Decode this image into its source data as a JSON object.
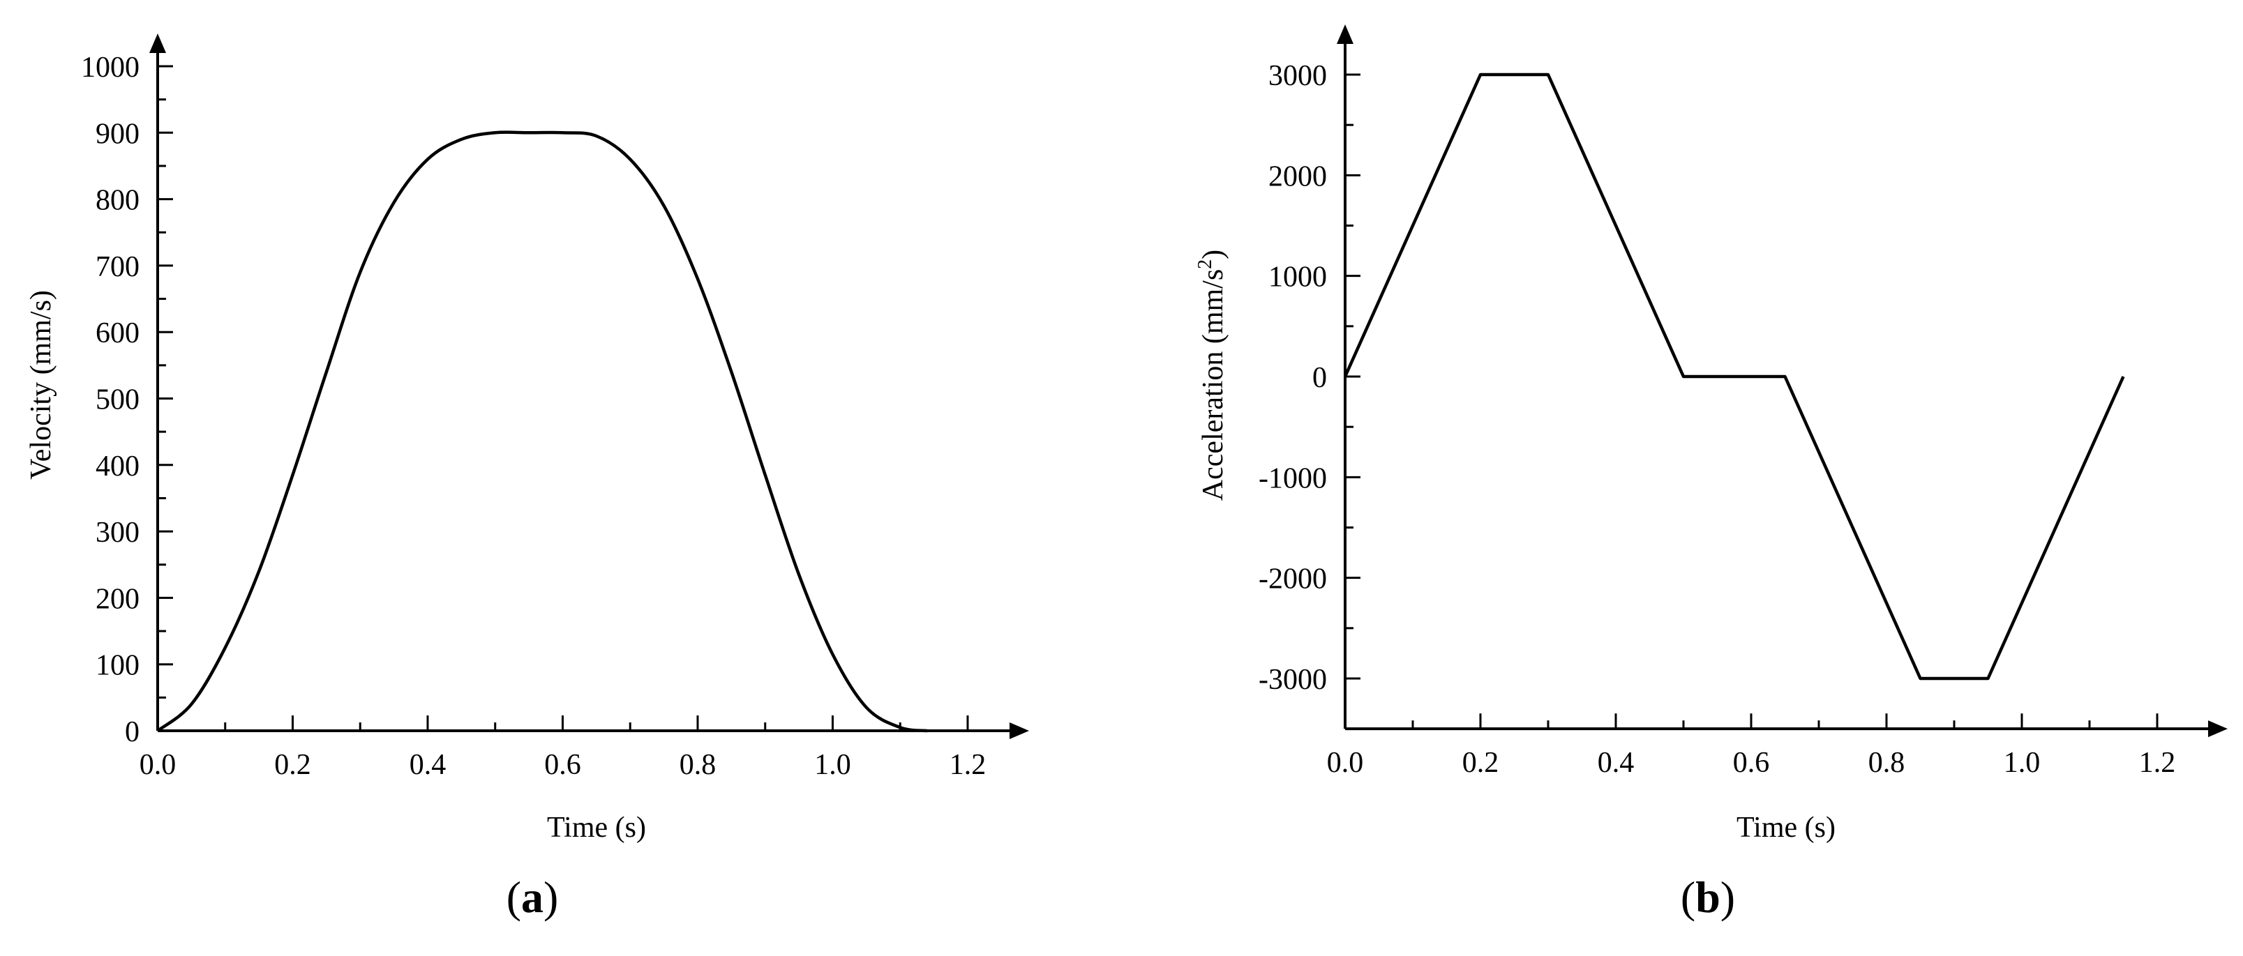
{
  "chart_data": [
    {
      "id": "a",
      "type": "line",
      "panel_label": "a",
      "xlabel": "Time (s)",
      "ylabel": "Velocity (mm/s)",
      "xlim": [
        0,
        1.3
      ],
      "ylim": [
        0,
        1050
      ],
      "x_ticks": [
        0.0,
        0.2,
        0.4,
        0.6,
        0.8,
        1.0,
        1.2
      ],
      "x_tick_labels": [
        "0.0",
        "0.2",
        "0.4",
        "0.6",
        "0.8",
        "1.0",
        "1.2"
      ],
      "y_ticks": [
        0,
        100,
        200,
        300,
        400,
        500,
        600,
        700,
        800,
        900,
        1000
      ],
      "y_tick_labels": [
        "0",
        "100",
        "200",
        "300",
        "400",
        "500",
        "600",
        "700",
        "800",
        "900",
        "1000"
      ],
      "grid": false,
      "series": [
        {
          "x": [
            0,
            0.05,
            0.1,
            0.15,
            0.2,
            0.25,
            0.3,
            0.35,
            0.4,
            0.45,
            0.5,
            0.55,
            0.6,
            0.65,
            0.7,
            0.75,
            0.8,
            0.85,
            0.9,
            0.95,
            1.0,
            1.05,
            1.1,
            1.14
          ],
          "y": [
            0,
            40,
            125,
            240,
            385,
            540,
            690,
            795,
            860,
            890,
            900,
            900,
            900,
            895,
            860,
            790,
            680,
            540,
            385,
            235,
            115,
            35,
            5,
            0
          ]
        }
      ]
    },
    {
      "id": "b",
      "type": "line",
      "panel_label": "b",
      "xlabel": "Time (s)",
      "ylabel": "Acceleration (mm/s",
      "ylabel_sup": "2",
      "ylabel_end": ")",
      "xlim": [
        0,
        1.3
      ],
      "ylim": [
        -3500,
        3500
      ],
      "x_ticks": [
        0.0,
        0.2,
        0.4,
        0.6,
        0.8,
        1.0,
        1.2
      ],
      "x_tick_labels": [
        "0.0",
        "0.2",
        "0.4",
        "0.6",
        "0.8",
        "1.0",
        "1.2"
      ],
      "y_ticks": [
        -3000,
        -2000,
        -1000,
        0,
        1000,
        2000,
        3000
      ],
      "y_tick_labels": [
        "-3000",
        "-2000",
        "-1000",
        "0",
        "1000",
        "2000",
        "3000"
      ],
      "grid": false,
      "series": [
        {
          "x": [
            0,
            0.2,
            0.3,
            0.5,
            0.65,
            0.85,
            0.95,
            1.15
          ],
          "y": [
            0,
            3000,
            3000,
            0,
            0,
            -3000,
            -3000,
            0
          ]
        }
      ]
    }
  ]
}
